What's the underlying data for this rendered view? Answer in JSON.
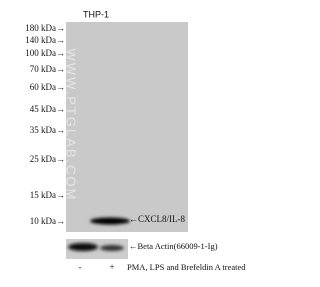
{
  "lane_label": "THP-1",
  "markers": [
    "180 kDa→",
    "140 kDa→",
    "100 kDa→",
    "70 kDa→",
    "60 kDa→",
    "45 kDa→",
    "35 kDa→",
    "25 kDa→",
    "15 kDa→",
    "10 kDa→"
  ],
  "watermark": "WWW.PTGLAB.COM",
  "band_labels": [
    "←CXCL8/IL-8",
    "←Beta Actin(66009-1-Ig)"
  ],
  "treatment": {
    "signs": [
      "-",
      "+"
    ],
    "label": "PMA, LPS and Brefeldin A treated"
  }
}
